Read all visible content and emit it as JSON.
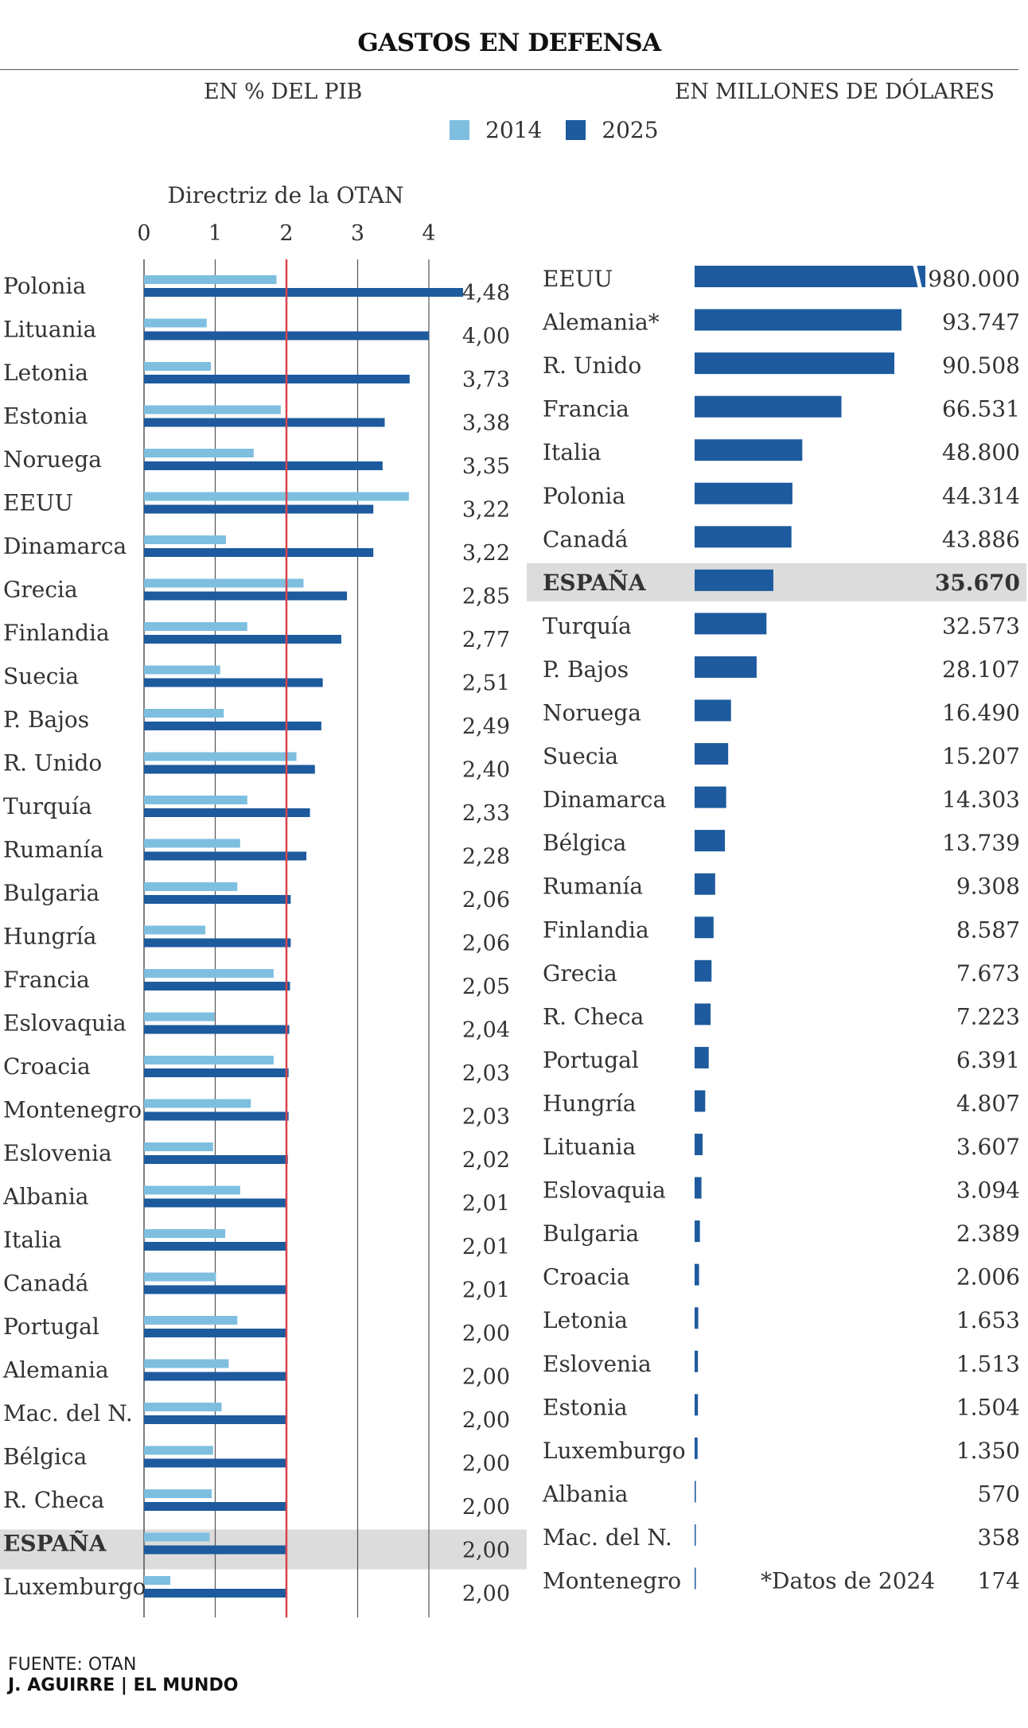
{
  "title": "GASTOS EN DEFENSA",
  "subtitle_left": "EN % DEL PIB",
  "subtitle_right": "EN MILLONES DE DÓLARES",
  "legend": [
    {
      "label": "2014",
      "color": "#7ebfe0"
    },
    {
      "label": "2025",
      "color": "#1d5a9e"
    }
  ],
  "colors": {
    "light": "#7ebfe0",
    "dark": "#1d5a9e",
    "reference_line": "#d9434b",
    "highlight": "#dcdcdc"
  },
  "highlight_country": "ESPAÑA",
  "source": "FUENTE: OTAN",
  "credit": "J. AGUIRRE | EL MUNDO",
  "chart_data": [
    {
      "type": "bar",
      "orientation": "horizontal",
      "title": "EN % DEL PIB",
      "reference_line": {
        "label": "Directriz de la OTAN",
        "value": 2
      },
      "xlim": [
        0,
        4.48
      ],
      "x_ticks": [
        "0",
        "1",
        "2",
        "3",
        "4"
      ],
      "grid": "vertical lines at ticks",
      "categories": [
        "Polonia",
        "Lituania",
        "Letonia",
        "Estonia",
        "Noruega",
        "EEUU",
        "Dinamarca",
        "Grecia",
        "Finlandia",
        "Suecia",
        "P. Bajos",
        "R. Unido",
        "Turquía",
        "Rumanía",
        "Bulgaria",
        "Hungría",
        "Francia",
        "Eslovaquia",
        "Croacia",
        "Montenegro",
        "Eslovenia",
        "Albania",
        "Italia",
        "Canadá",
        "Portugal",
        "Alemania",
        "Mac. del N.",
        "Bélgica",
        "R. Checa",
        "ESPAÑA",
        "Luxemburgo"
      ],
      "series": [
        {
          "name": "2014",
          "values": [
            1.86,
            0.88,
            0.94,
            1.92,
            1.54,
            3.72,
            1.15,
            2.24,
            1.45,
            1.07,
            1.12,
            2.14,
            1.45,
            1.35,
            1.31,
            0.86,
            1.82,
            0.99,
            1.82,
            1.5,
            0.97,
            1.35,
            1.14,
            1.01,
            1.31,
            1.19,
            1.09,
            0.97,
            0.95,
            0.92,
            0.37
          ]
        },
        {
          "name": "2025",
          "values": [
            4.48,
            4.0,
            3.73,
            3.38,
            3.35,
            3.22,
            3.22,
            2.85,
            2.77,
            2.51,
            2.49,
            2.4,
            2.33,
            2.28,
            2.06,
            2.06,
            2.05,
            2.04,
            2.03,
            2.03,
            2.02,
            2.01,
            2.01,
            2.01,
            2.0,
            2.0,
            2.0,
            2.0,
            2.0,
            2.0,
            2.0
          ]
        }
      ],
      "value_labels": [
        "4,48",
        "4,00",
        "3,73",
        "3,38",
        "3,35",
        "3,22",
        "3,22",
        "2,85",
        "2,77",
        "2,51",
        "2,49",
        "2,40",
        "2,33",
        "2,28",
        "2,06",
        "2,06",
        "2,05",
        "2,04",
        "2,03",
        "2,03",
        "2,02",
        "2,01",
        "2,01",
        "2,01",
        "2,00",
        "2,00",
        "2,00",
        "2,00",
        "2,00",
        "2,00",
        "2,00"
      ]
    },
    {
      "type": "bar",
      "orientation": "horizontal",
      "title": "EN MILLONES DE DÓLARES",
      "axis_break_on_first_bar": true,
      "categories": [
        "EEUU",
        "Alemania*",
        "R. Unido",
        "Francia",
        "Italia",
        "Polonia",
        "Canadá",
        "ESPAÑA",
        "Turquía",
        "P. Bajos",
        "Noruega",
        "Suecia",
        "Dinamarca",
        "Bélgica",
        "Rumanía",
        "Finlandia",
        "Grecia",
        "R. Checa",
        "Portugal",
        "Hungría",
        "Lituania",
        "Eslovaquia",
        "Bulgaria",
        "Croacia",
        "Letonia",
        "Eslovenia",
        "Estonia",
        "Luxemburgo",
        "Albania",
        "Mac. del N.",
        "Montenegro"
      ],
      "values": [
        980000,
        93747,
        90508,
        66531,
        48800,
        44314,
        43886,
        35670,
        32573,
        28107,
        16490,
        15207,
        14303,
        13739,
        9308,
        8587,
        7673,
        7223,
        6391,
        4807,
        3607,
        3094,
        2389,
        2006,
        1653,
        1513,
        1504,
        1350,
        570,
        358,
        174
      ],
      "value_labels": [
        "980.000",
        "93.747",
        "90.508",
        "66.531",
        "48.800",
        "44.314",
        "43.886",
        "35.670",
        "32.573",
        "28.107",
        "16.490",
        "15.207",
        "14.303",
        "13.739",
        "9.308",
        "8.587",
        "7.673",
        "7.223",
        "6.391",
        "4.807",
        "3.607",
        "3.094",
        "2.389",
        "2.006",
        "1.653",
        "1.513",
        "1.504",
        "1.350",
        "570",
        "358",
        "174"
      ],
      "footnote": "*Datos de 2024"
    }
  ]
}
